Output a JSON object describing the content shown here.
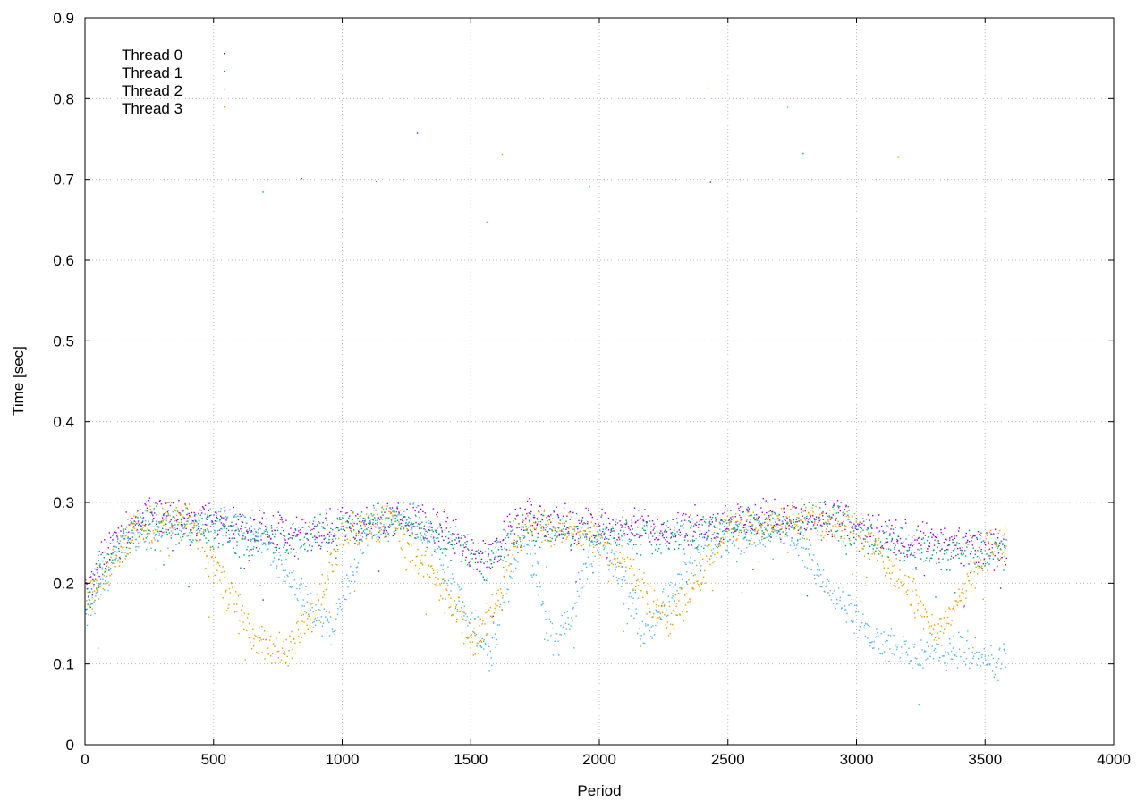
{
  "chart_data": {
    "type": "scatter",
    "title": "",
    "xlabel": "Period",
    "ylabel": "Time [sec]",
    "xlim": [
      0,
      4000
    ],
    "ylim": [
      0,
      0.9
    ],
    "xticks": [
      0,
      500,
      1000,
      1500,
      2000,
      2500,
      3000,
      3500,
      4000
    ],
    "yticks": [
      0,
      0.1,
      0.2,
      0.3,
      0.4,
      0.5,
      0.6,
      0.7,
      0.8,
      0.9
    ],
    "grid": true,
    "legend_position": "top-left",
    "point_count_per_thread": 3580,
    "series": [
      {
        "name": "Thread 0",
        "color": "#9400d3",
        "typical_range": [
          0.24,
          0.3
        ],
        "points_sample": [
          [
            20,
            0.2
          ],
          [
            100,
            0.25
          ],
          [
            250,
            0.29
          ],
          [
            400,
            0.28
          ],
          [
            600,
            0.27
          ],
          [
            800,
            0.26
          ],
          [
            1000,
            0.27
          ],
          [
            1200,
            0.28
          ],
          [
            1400,
            0.27
          ],
          [
            1550,
            0.23
          ],
          [
            1700,
            0.28
          ],
          [
            2000,
            0.27
          ],
          [
            2300,
            0.27
          ],
          [
            2600,
            0.28
          ],
          [
            2900,
            0.28
          ],
          [
            3100,
            0.26
          ],
          [
            3300,
            0.25
          ],
          [
            3550,
            0.24
          ]
        ],
        "outliers": [
          [
            840,
            0.702
          ],
          [
            1290,
            0.758
          ],
          [
            2430,
            0.697
          ]
        ]
      },
      {
        "name": "Thread 1",
        "color": "#009e73",
        "typical_range": [
          0.24,
          0.3
        ],
        "points_sample": [
          [
            20,
            0.19
          ],
          [
            100,
            0.24
          ],
          [
            250,
            0.28
          ],
          [
            400,
            0.27
          ],
          [
            600,
            0.26
          ],
          [
            800,
            0.25
          ],
          [
            1000,
            0.27
          ],
          [
            1200,
            0.28
          ],
          [
            1400,
            0.26
          ],
          [
            1550,
            0.22
          ],
          [
            1700,
            0.27
          ],
          [
            2000,
            0.26
          ],
          [
            2300,
            0.26
          ],
          [
            2600,
            0.27
          ],
          [
            2900,
            0.28
          ],
          [
            3100,
            0.25
          ],
          [
            3300,
            0.24
          ],
          [
            3550,
            0.24
          ]
        ],
        "outliers": [
          [
            690,
            0.685
          ],
          [
            1130,
            0.698
          ],
          [
            2790,
            0.733
          ]
        ]
      },
      {
        "name": "Thread 2",
        "color": "#56b4e9",
        "typical_range": [
          0.09,
          0.3
        ],
        "points_sample": [
          [
            20,
            0.17
          ],
          [
            150,
            0.26
          ],
          [
            350,
            0.27
          ],
          [
            500,
            0.28
          ],
          [
            700,
            0.25
          ],
          [
            950,
            0.14
          ],
          [
            1100,
            0.27
          ],
          [
            1300,
            0.28
          ],
          [
            1500,
            0.15
          ],
          [
            1570,
            0.11
          ],
          [
            1700,
            0.27
          ],
          [
            1830,
            0.12
          ],
          [
            2000,
            0.26
          ],
          [
            2180,
            0.14
          ],
          [
            2400,
            0.25
          ],
          [
            2700,
            0.27
          ],
          [
            3050,
            0.14
          ],
          [
            3200,
            0.11
          ],
          [
            3400,
            0.12
          ],
          [
            3560,
            0.1
          ]
        ],
        "outliers": [
          [
            1560,
            0.648
          ],
          [
            1960,
            0.692
          ],
          [
            2730,
            0.79
          ]
        ]
      },
      {
        "name": "Thread 3",
        "color": "#e69f00",
        "typical_range": [
          0.11,
          0.3
        ],
        "points_sample": [
          [
            20,
            0.18
          ],
          [
            200,
            0.27
          ],
          [
            400,
            0.28
          ],
          [
            600,
            0.16
          ],
          [
            700,
            0.12
          ],
          [
            780,
            0.12
          ],
          [
            880,
            0.16
          ],
          [
            1000,
            0.26
          ],
          [
            1200,
            0.28
          ],
          [
            1450,
            0.16
          ],
          [
            1520,
            0.12
          ],
          [
            1700,
            0.27
          ],
          [
            2000,
            0.26
          ],
          [
            2270,
            0.15
          ],
          [
            2500,
            0.27
          ],
          [
            2800,
            0.28
          ],
          [
            3000,
            0.27
          ],
          [
            3320,
            0.14
          ],
          [
            3500,
            0.24
          ],
          [
            3570,
            0.25
          ]
        ],
        "outliers": [
          [
            2420,
            0.814
          ],
          [
            3160,
            0.728
          ],
          [
            1620,
            0.732
          ]
        ]
      }
    ]
  }
}
